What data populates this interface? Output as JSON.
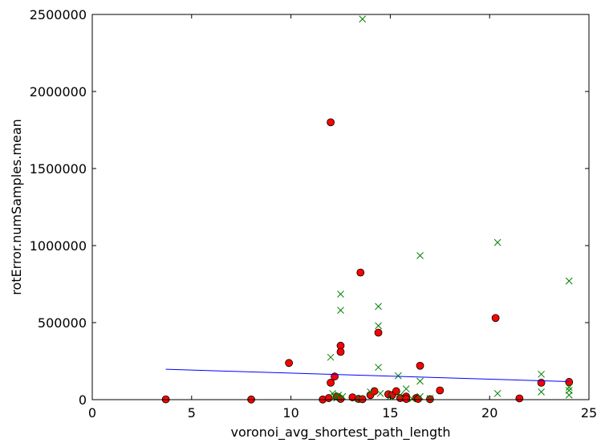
{
  "chart_data": {
    "type": "scatter",
    "title": "",
    "xlabel": "voronoi_avg_shortest_path_length",
    "ylabel": "rotError.numSamples.mean",
    "xlim": [
      0,
      25
    ],
    "ylim": [
      0,
      2500000
    ],
    "xticks": [
      0,
      5,
      10,
      15,
      20,
      25
    ],
    "yticks": [
      0,
      500000,
      1000000,
      1500000,
      2000000,
      2500000
    ],
    "grid": false,
    "legend": "none",
    "series": [
      {
        "marker": "circle",
        "color": "#ff0000",
        "edge_color": "#000000",
        "points": [
          [
            3.7,
            2000
          ],
          [
            8.0,
            1000
          ],
          [
            9.9,
            238000
          ],
          [
            11.6,
            1000
          ],
          [
            11.9,
            10000
          ],
          [
            12.0,
            1800000
          ],
          [
            12.0,
            110000
          ],
          [
            12.2,
            150000
          ],
          [
            12.3,
            20000
          ],
          [
            12.5,
            350000
          ],
          [
            12.5,
            310000
          ],
          [
            12.5,
            5000
          ],
          [
            13.1,
            15000
          ],
          [
            13.4,
            5000
          ],
          [
            13.5,
            825000
          ],
          [
            13.6,
            3000
          ],
          [
            14.0,
            30000
          ],
          [
            14.2,
            55000
          ],
          [
            14.4,
            435000
          ],
          [
            14.9,
            35000
          ],
          [
            15.1,
            30000
          ],
          [
            15.3,
            55000
          ],
          [
            15.5,
            10000
          ],
          [
            15.8,
            20000
          ],
          [
            15.8,
            5000
          ],
          [
            16.3,
            10000
          ],
          [
            16.4,
            5000
          ],
          [
            16.5,
            220000
          ],
          [
            17.0,
            3000
          ],
          [
            17.5,
            60000
          ],
          [
            20.3,
            530000
          ],
          [
            21.5,
            8000
          ],
          [
            22.6,
            110000
          ],
          [
            24.0,
            115000
          ]
        ]
      },
      {
        "marker": "x",
        "color": "#008000",
        "points": [
          [
            12.0,
            275000
          ],
          [
            12.1,
            40000
          ],
          [
            12.2,
            20000
          ],
          [
            12.3,
            10000
          ],
          [
            12.4,
            30000
          ],
          [
            12.5,
            685000
          ],
          [
            12.5,
            580000
          ],
          [
            12.6,
            20000
          ],
          [
            13.4,
            5000
          ],
          [
            13.6,
            2470000
          ],
          [
            14.0,
            50000
          ],
          [
            14.4,
            605000
          ],
          [
            14.4,
            480000
          ],
          [
            14.4,
            210000
          ],
          [
            14.5,
            40000
          ],
          [
            15.0,
            20000
          ],
          [
            15.4,
            155000
          ],
          [
            15.5,
            30000
          ],
          [
            15.8,
            70000
          ],
          [
            16.1,
            5000
          ],
          [
            16.5,
            935000
          ],
          [
            16.5,
            120000
          ],
          [
            16.5,
            20000
          ],
          [
            17.0,
            8000
          ],
          [
            20.4,
            1020000
          ],
          [
            20.4,
            40000
          ],
          [
            22.6,
            165000
          ],
          [
            22.6,
            50000
          ],
          [
            24.0,
            770000
          ],
          [
            24.0,
            80000
          ],
          [
            24.0,
            60000
          ],
          [
            24.0,
            30000
          ]
        ]
      },
      {
        "type": "line",
        "color": "#0000ff",
        "points": [
          [
            3.7,
            197000
          ],
          [
            24.0,
            117000
          ]
        ]
      }
    ]
  }
}
